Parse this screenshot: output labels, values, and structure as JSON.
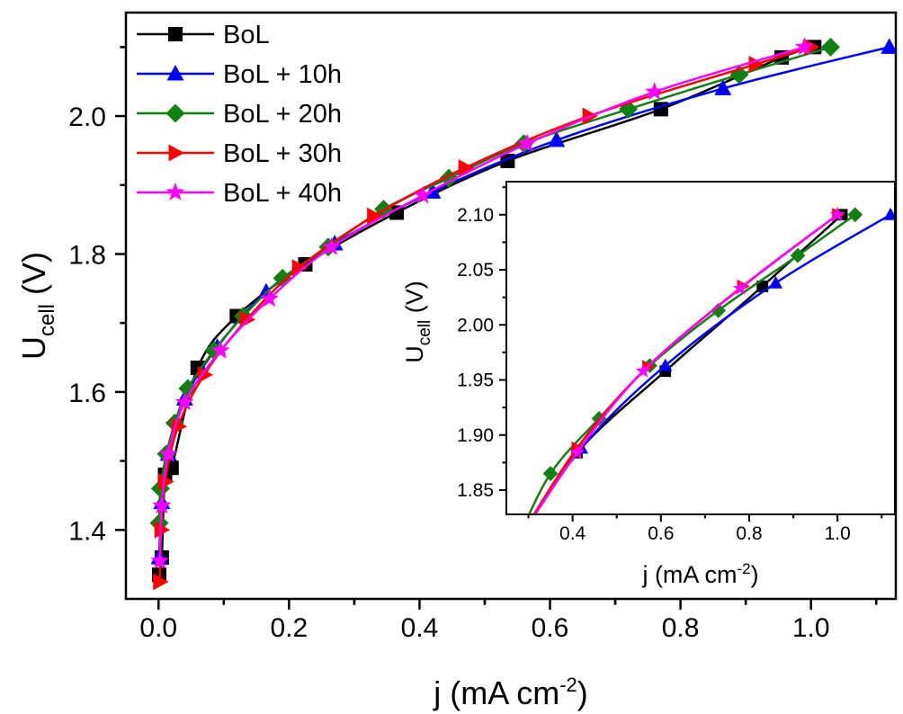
{
  "chart_data": [
    {
      "type": "line",
      "xlabel": {
        "base": "j (mA cm",
        "sup": "-2",
        "end": ")"
      },
      "ylabel": {
        "base": "U",
        "sub": "cell",
        "end": " (V)"
      },
      "xlim": [
        -0.05,
        1.13
      ],
      "ylim": [
        1.3,
        2.15
      ],
      "xticks": [
        "0.0",
        "0.2",
        "0.4",
        "0.6",
        "0.8",
        "1.0"
      ],
      "yticks": [
        "1.4",
        "1.6",
        "1.8",
        "2.0"
      ],
      "legend_position": "top-left",
      "series": [
        {
          "name": "BoL",
          "color": "#000000",
          "marker": "square",
          "points": [
            [
              0.001,
              1.335
            ],
            [
              0.005,
              1.36
            ],
            [
              0.01,
              1.48
            ],
            [
              0.02,
              1.49
            ],
            [
              0.06,
              1.635
            ],
            [
              0.12,
              1.71
            ],
            [
              0.225,
              1.785
            ],
            [
              0.365,
              1.86
            ],
            [
              0.535,
              1.935
            ],
            [
              0.77,
              2.01
            ],
            [
              0.955,
              2.085
            ],
            [
              1.005,
              2.1
            ]
          ]
        },
        {
          "name": "BoL + 10h",
          "color": "#0000ff",
          "marker": "triangle-up",
          "points": [
            [
              0.001,
              1.36
            ],
            [
              0.005,
              1.44
            ],
            [
              0.015,
              1.51
            ],
            [
              0.04,
              1.59
            ],
            [
              0.09,
              1.665
            ],
            [
              0.165,
              1.745
            ],
            [
              0.27,
              1.815
            ],
            [
              0.42,
              1.89
            ],
            [
              0.61,
              1.965
            ],
            [
              0.865,
              2.04
            ],
            [
              1.12,
              2.1
            ]
          ]
        },
        {
          "name": "BoL + 20h",
          "color": "#118011",
          "marker": "diamond",
          "points": [
            [
              0.001,
              1.41
            ],
            [
              0.003,
              1.46
            ],
            [
              0.012,
              1.51
            ],
            [
              0.025,
              1.555
            ],
            [
              0.045,
              1.605
            ],
            [
              0.085,
              1.66
            ],
            [
              0.13,
              1.71
            ],
            [
              0.19,
              1.765
            ],
            [
              0.26,
              1.81
            ],
            [
              0.345,
              1.865
            ],
            [
              0.445,
              1.91
            ],
            [
              0.56,
              1.96
            ],
            [
              0.72,
              2.01
            ],
            [
              0.89,
              2.06
            ],
            [
              1.03,
              2.1
            ]
          ]
        },
        {
          "name": "BoL + 30h",
          "color": "#ff0000",
          "marker": "triangle-right",
          "points": [
            [
              0.002,
              1.325
            ],
            [
              0.004,
              1.4
            ],
            [
              0.01,
              1.47
            ],
            [
              0.03,
              1.55
            ],
            [
              0.07,
              1.625
            ],
            [
              0.135,
              1.705
            ],
            [
              0.215,
              1.78
            ],
            [
              0.33,
              1.855
            ],
            [
              0.47,
              1.925
            ],
            [
              0.66,
              2.0
            ],
            [
              0.915,
              2.075
            ],
            [
              1.0,
              2.1
            ]
          ]
        },
        {
          "name": "BoL + 40h",
          "color": "#ff00ff",
          "marker": "star",
          "points": [
            [
              0.002,
              1.355
            ],
            [
              0.005,
              1.435
            ],
            [
              0.015,
              1.51
            ],
            [
              0.04,
              1.585
            ],
            [
              0.095,
              1.66
            ],
            [
              0.17,
              1.735
            ],
            [
              0.265,
              1.81
            ],
            [
              0.405,
              1.885
            ],
            [
              0.565,
              1.96
            ],
            [
              0.76,
              2.035
            ],
            [
              0.99,
              2.1
            ]
          ]
        }
      ]
    },
    {
      "type": "line",
      "inset": true,
      "xlabel": {
        "base": "j (mA cm",
        "sup": "-2",
        "end": ")"
      },
      "ylabel": {
        "base": "U",
        "sub": "cell",
        "end": " (V)"
      },
      "xlim": [
        0.25,
        1.13
      ],
      "ylim": [
        1.828,
        2.13
      ],
      "xticks": [
        "0.4",
        "0.6",
        "0.8",
        "1.0"
      ],
      "yticks": [
        "1.85",
        "1.90",
        "1.95",
        "2.00",
        "2.05",
        "2.10"
      ],
      "series": [
        {
          "name": "BoL",
          "color": "#000000",
          "marker": "square",
          "line_points": [
            [
              0.27,
              1.8
            ],
            [
              0.41,
              1.884
            ],
            [
              0.61,
              1.958
            ],
            [
              0.73,
              2.0
            ],
            [
              0.83,
              2.035
            ],
            [
              1.01,
              2.1
            ]
          ],
          "marker_points": [
            [
              0.41,
              1.884
            ],
            [
              0.61,
              1.958
            ],
            [
              0.83,
              2.035
            ],
            [
              1.01,
              2.1
            ]
          ]
        },
        {
          "name": "BoL + 10h",
          "color": "#0000ff",
          "marker": "triangle-up",
          "line_points": [
            [
              0.27,
              1.8
            ],
            [
              0.42,
              1.888
            ],
            [
              0.61,
              1.963
            ],
            [
              0.86,
              2.038
            ],
            [
              1.12,
              2.1
            ]
          ],
          "marker_points": [
            [
              0.42,
              1.888
            ],
            [
              0.61,
              1.963
            ],
            [
              0.86,
              2.038
            ],
            [
              1.12,
              2.1
            ]
          ]
        },
        {
          "name": "BoL + 20h",
          "color": "#118011",
          "marker": "diamond",
          "line_points": [
            [
              0.27,
              1.8
            ],
            [
              0.35,
              1.865
            ],
            [
              0.46,
              1.915
            ],
            [
              0.575,
              1.963
            ],
            [
              0.73,
              2.013
            ],
            [
              0.91,
              2.063
            ],
            [
              1.04,
              2.1
            ]
          ],
          "marker_points": [
            [
              0.35,
              1.865
            ],
            [
              0.46,
              1.915
            ],
            [
              0.575,
              1.963
            ],
            [
              0.73,
              2.013
            ],
            [
              0.91,
              2.063
            ],
            [
              1.04,
              2.1
            ]
          ]
        },
        {
          "name": "BoL + 30h",
          "color": "#ff0000",
          "marker": "triangle-right",
          "line_points": [
            [
              0.27,
              1.8
            ],
            [
              0.41,
              1.888
            ],
            [
              0.57,
              1.962
            ],
            [
              0.785,
              2.035
            ],
            [
              1.0,
              2.1
            ]
          ],
          "marker_points": [
            [
              0.41,
              1.888
            ],
            [
              0.57,
              1.962
            ],
            [
              0.785,
              2.035
            ],
            [
              1.0,
              2.1
            ]
          ]
        },
        {
          "name": "BoL + 40h",
          "color": "#ff00ff",
          "marker": "star",
          "line_points": [
            [
              0.27,
              1.8
            ],
            [
              0.41,
              1.884
            ],
            [
              0.56,
              1.958
            ],
            [
              0.78,
              2.033
            ],
            [
              1.0,
              2.1
            ]
          ],
          "marker_points": [
            [
              0.41,
              1.884
            ],
            [
              0.56,
              1.958
            ],
            [
              0.78,
              2.033
            ],
            [
              1.0,
              2.1
            ]
          ]
        }
      ]
    }
  ]
}
